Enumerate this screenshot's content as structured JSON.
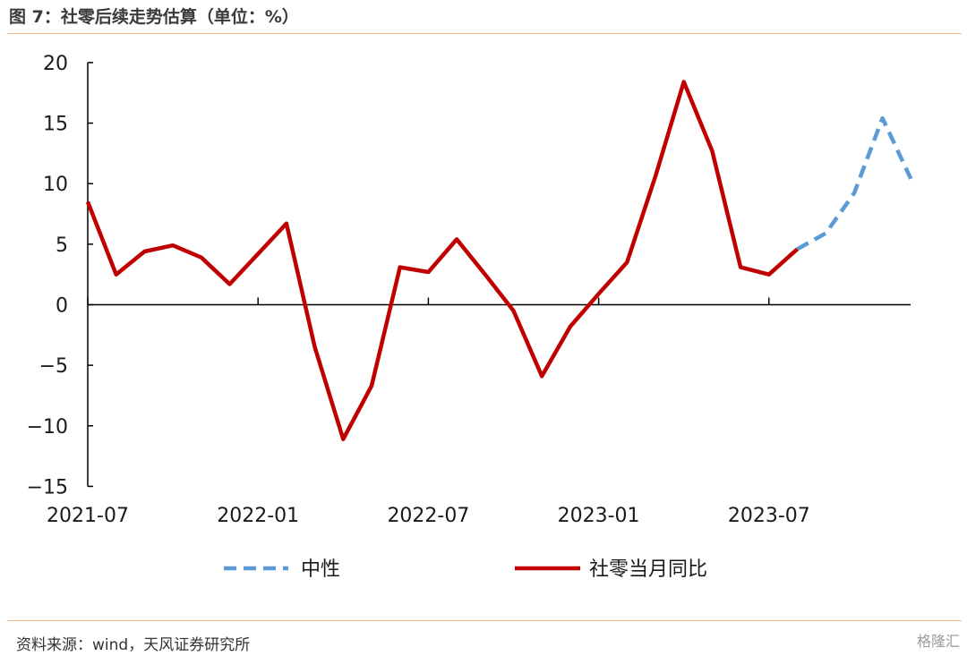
{
  "title": "图 7：社零后续走势估算（单位：%）",
  "source": "资料来源：wind，天风证券研究所",
  "watermark": "格隆汇",
  "chart_data": {
    "type": "line",
    "title": "图 7：社零后续走势估算（单位：%）",
    "xlabel": "",
    "ylabel": "",
    "ylim": [
      -15,
      20
    ],
    "yticks": [
      -15,
      -10,
      -5,
      0,
      5,
      10,
      15,
      20
    ],
    "ytick_labels": [
      "−15",
      "−10",
      "−5",
      "0",
      "5",
      "10",
      "15",
      "20"
    ],
    "x_tick_labels": [
      "2021-07",
      "2022-01",
      "2022-07",
      "2023-01",
      "2023-07"
    ],
    "x_tick_months": [
      "2021-07",
      "2022-01",
      "2022-07",
      "2023-01",
      "2023-07"
    ],
    "legend_position": "bottom",
    "series": [
      {
        "name": "社零当月同比",
        "color": "#c00000",
        "style": "solid",
        "points": [
          [
            "2021-07",
            8.5
          ],
          [
            "2021-08",
            2.5
          ],
          [
            "2021-09",
            4.4
          ],
          [
            "2021-10",
            4.9
          ],
          [
            "2021-11",
            3.9
          ],
          [
            "2021-12",
            1.7
          ],
          [
            "2022-01",
            4.2
          ],
          [
            "2022-02",
            6.7
          ],
          [
            "2022-03",
            -3.5
          ],
          [
            "2022-04",
            -11.1
          ],
          [
            "2022-05",
            -6.7
          ],
          [
            "2022-06",
            3.1
          ],
          [
            "2022-07",
            2.7
          ],
          [
            "2022-08",
            5.4
          ],
          [
            "2022-09",
            2.5
          ],
          [
            "2022-10",
            -0.5
          ],
          [
            "2022-11",
            -5.9
          ],
          [
            "2022-12",
            -1.8
          ],
          [
            "2023-01",
            0.9
          ],
          [
            "2023-02",
            3.5
          ],
          [
            "2023-03",
            10.6
          ],
          [
            "2023-04",
            18.4
          ],
          [
            "2023-05",
            12.7
          ],
          [
            "2023-06",
            3.1
          ],
          [
            "2023-07",
            2.5
          ],
          [
            "2023-08",
            4.6
          ]
        ]
      },
      {
        "name": "中性",
        "color": "#5b9bd5",
        "style": "dashed",
        "points": [
          [
            "2023-08",
            4.6
          ],
          [
            "2023-09",
            5.9
          ],
          [
            "2023-10",
            9.2
          ],
          [
            "2023-11",
            15.4
          ],
          [
            "2023-12",
            10.4
          ]
        ]
      }
    ]
  }
}
